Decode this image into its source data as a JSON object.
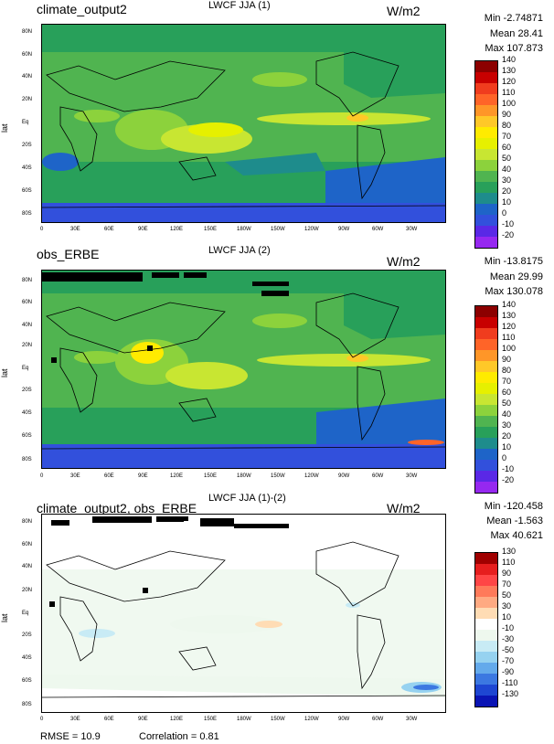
{
  "panels": [
    {
      "name": "climate_output2",
      "title": "LWCF JJA (1)",
      "units": "W/m2",
      "min": "Min -2.74871",
      "mean": "Mean 28.41",
      "max": "Max 107.873",
      "ylabel": "lat",
      "colorbar": {
        "labels": [
          "140",
          "130",
          "120",
          "110",
          "100",
          "90",
          "80",
          "70",
          "60",
          "50",
          "40",
          "30",
          "20",
          "10",
          "0",
          "-10",
          "-20"
        ],
        "colors": [
          "#8c0000",
          "#c80000",
          "#f03c1e",
          "#ff6428",
          "#ff9628",
          "#ffc828",
          "#ffeb00",
          "#e6f000",
          "#c8e632",
          "#8cd23c",
          "#50b450",
          "#28a05a",
          "#1e8c8c",
          "#1e64c8",
          "#3250dc",
          "#5a28e6",
          "#9628f0"
        ]
      },
      "chart_data": {
        "type": "heatmap",
        "title": "LWCF JJA (1)",
        "field": "climate_output2",
        "units": "W/m2",
        "min": -2.74871,
        "mean": 28.41,
        "max": 107.873,
        "levels": [
          -20,
          -10,
          0,
          10,
          20,
          30,
          40,
          50,
          60,
          70,
          80,
          90,
          100,
          110,
          120,
          130,
          140
        ],
        "xlabel": "",
        "ylabel": "lat"
      }
    },
    {
      "name": "obs_ERBE",
      "title": "LWCF JJA (2)",
      "units": "W/m2",
      "min": "Min -13.8175",
      "mean": "Mean 29.99",
      "max": "Max 130.078",
      "ylabel": "lat",
      "colorbar": {
        "labels": [
          "140",
          "130",
          "120",
          "110",
          "100",
          "90",
          "80",
          "70",
          "60",
          "50",
          "40",
          "30",
          "20",
          "10",
          "0",
          "-10",
          "-20"
        ],
        "colors": [
          "#8c0000",
          "#c80000",
          "#f03c1e",
          "#ff6428",
          "#ff9628",
          "#ffc828",
          "#ffeb00",
          "#e6f000",
          "#c8e632",
          "#8cd23c",
          "#50b450",
          "#28a05a",
          "#1e8c8c",
          "#1e64c8",
          "#3250dc",
          "#5a28e6",
          "#9628f0"
        ]
      },
      "chart_data": {
        "type": "heatmap",
        "title": "LWCF JJA (2)",
        "field": "obs_ERBE",
        "units": "W/m2",
        "min": -13.8175,
        "mean": 29.99,
        "max": 130.078,
        "levels": [
          -20,
          -10,
          0,
          10,
          20,
          30,
          40,
          50,
          60,
          70,
          80,
          90,
          100,
          110,
          120,
          130,
          140
        ],
        "xlabel": "",
        "ylabel": "lat"
      }
    },
    {
      "name": "climate_output2, obs_ERBE",
      "title": "LWCF JJA (1)-(2)",
      "units": "W/m2",
      "min": "Min -120.458",
      "mean": "Mean -1.563",
      "max": "Max 40.621",
      "ylabel": "lat",
      "colorbar": {
        "labels": [
          "130",
          "110",
          "90",
          "70",
          "50",
          "30",
          "10",
          "-10",
          "-30",
          "-50",
          "-70",
          "-90",
          "-110",
          "-130"
        ],
        "colors": [
          "#a00000",
          "#e61e1e",
          "#ff4646",
          "#ff7a5a",
          "#ffaa82",
          "#ffdcb4",
          "#ffffff",
          "#eef8ee",
          "#c8ebf5",
          "#96d2f0",
          "#64aaeb",
          "#3c78e1",
          "#1e46d2",
          "#0a14b4"
        ]
      },
      "chart_data": {
        "type": "heatmap",
        "title": "LWCF JJA (1)-(2)",
        "field": "climate_output2, obs_ERBE",
        "units": "W/m2",
        "min": -120.458,
        "mean": -1.563,
        "max": 40.621,
        "levels": [
          -130,
          -110,
          -90,
          -70,
          -50,
          -30,
          -10,
          10,
          30,
          50,
          70,
          90,
          110,
          130
        ],
        "xlabel": "",
        "ylabel": "lat"
      }
    }
  ],
  "lat_ticks": [
    "80N",
    "60N",
    "40N",
    "20N",
    "Eq",
    "20S",
    "40S",
    "60S",
    "80S"
  ],
  "lon_ticks": [
    "0",
    "30E",
    "60E",
    "90E",
    "120E",
    "150E",
    "180W",
    "150W",
    "120W",
    "90W",
    "60W",
    "30W"
  ],
  "footer": {
    "rmse": "RMSE = 10.9",
    "correlation": "Correlation = 0.81"
  }
}
